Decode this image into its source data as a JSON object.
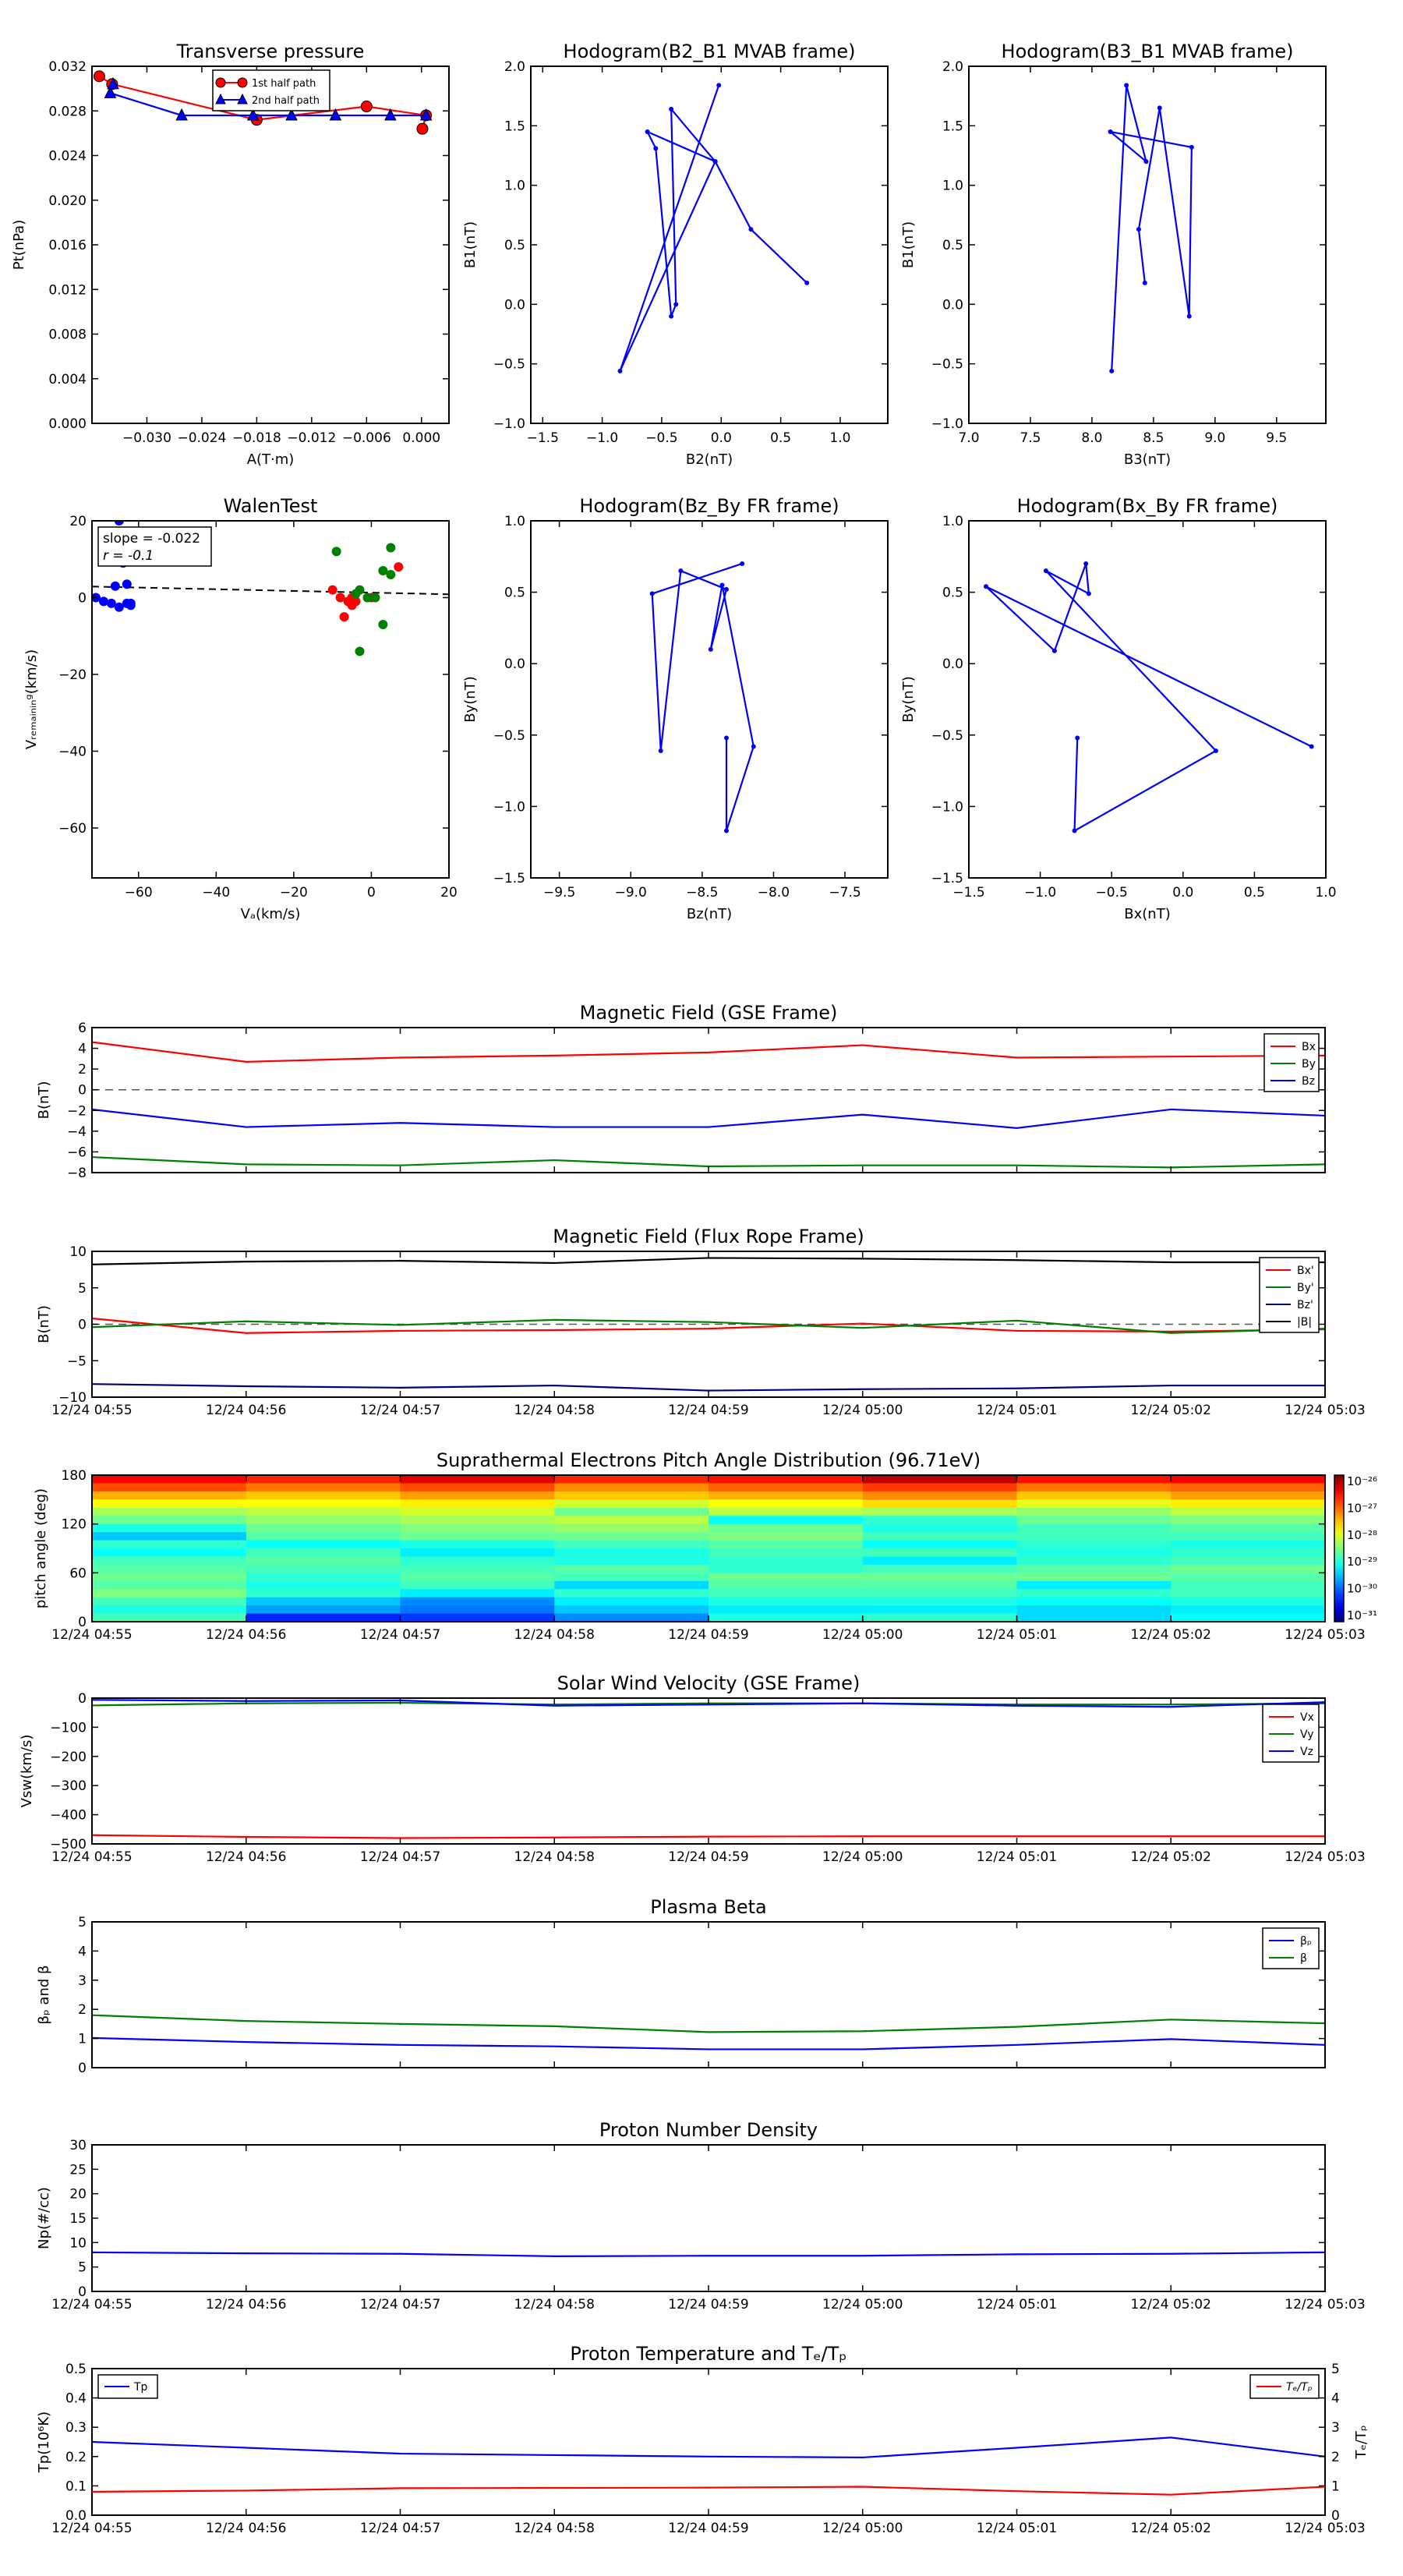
{
  "chart_data": [
    {
      "id": "tp",
      "type": "line",
      "title": "Transverse pressure",
      "xlabel": "A(T·m)",
      "ylabel": "Pt(nPa)",
      "xlim": [
        -0.036,
        0.003
      ],
      "ylim": [
        0.0,
        0.032
      ],
      "xticks": [
        -0.03,
        -0.024,
        -0.018,
        -0.012,
        -0.006,
        0.0
      ],
      "xtick_labels": [
        "−0.030",
        "−0.024",
        "−0.018",
        "−0.012",
        "−0.006",
        "0.000"
      ],
      "yticks": [
        0.0,
        0.004,
        0.008,
        0.012,
        0.016,
        0.02,
        0.024,
        0.028,
        0.032
      ],
      "ytick_labels": [
        "0.000",
        "0.004",
        "0.008",
        "0.012",
        "0.016",
        "0.020",
        "0.024",
        "0.028",
        "0.032"
      ],
      "legend": [
        "1st half path",
        "2nd half path"
      ],
      "series": [
        {
          "name": "1st half path",
          "color": "#ff0000",
          "marker": "circle",
          "fill": "#ff0000",
          "x": [
            -0.0352,
            -0.0338,
            -0.018,
            -0.006,
            0.0005,
            0.0001
          ],
          "y": [
            0.0311,
            0.0304,
            0.0272,
            0.0284,
            0.0276,
            0.0264
          ]
        },
        {
          "name": "2nd half path",
          "color": "#0000ff",
          "marker": "triangle",
          "fill": "#0000ff",
          "x": [
            0.0005,
            -0.0034,
            -0.0094,
            -0.0142,
            -0.0184,
            -0.0262,
            -0.034,
            -0.0337
          ],
          "y": [
            0.0276,
            0.0276,
            0.0276,
            0.0276,
            0.0276,
            0.0276,
            0.0296,
            0.0304
          ]
        }
      ]
    },
    {
      "id": "h1",
      "type": "line",
      "title": "Hodogram(B2_B1 MVAB frame)",
      "xlabel": "B2(nT)",
      "ylabel": "B1(nT)",
      "xlim": [
        -1.6,
        1.4
      ],
      "ylim": [
        -1.0,
        2.0
      ],
      "xticks": [
        -1.5,
        -1.0,
        -0.5,
        0.0,
        0.5,
        1.0
      ],
      "xtick_labels": [
        "−1.5",
        "−1.0",
        "−0.5",
        "0.0",
        "0.5",
        "1.0"
      ],
      "yticks": [
        -1.0,
        -0.5,
        0.0,
        0.5,
        1.0,
        1.5,
        2.0
      ],
      "ytick_labels": [
        "−1.0",
        "−0.5",
        "0.0",
        "0.5",
        "1.0",
        "1.5",
        "2.0"
      ],
      "series": [
        {
          "name": "hodogram",
          "color": "#0000ff",
          "marker": "dot",
          "x": [
            0.72,
            0.25,
            -0.05,
            -0.62,
            -0.55,
            -0.42,
            -0.38,
            -0.42,
            -0.05,
            -0.85,
            -0.02
          ],
          "y": [
            0.18,
            0.63,
            1.2,
            1.45,
            1.31,
            -0.1,
            0.0,
            1.64,
            1.2,
            -0.56,
            1.84
          ]
        }
      ]
    },
    {
      "id": "h2",
      "type": "line",
      "title": "Hodogram(B3_B1 MVAB frame)",
      "xlabel": "B3(nT)",
      "ylabel": "B1(nT)",
      "xlim": [
        7.0,
        9.9
      ],
      "ylim": [
        -1.0,
        2.0
      ],
      "xticks": [
        7.0,
        7.5,
        8.0,
        8.5,
        9.0,
        9.5
      ],
      "xtick_labels": [
        "7.0",
        "7.5",
        "8.0",
        "8.5",
        "9.0",
        "9.5"
      ],
      "yticks": [
        -1.0,
        -0.5,
        0.0,
        0.5,
        1.0,
        1.5,
        2.0
      ],
      "ytick_labels": [
        "−1.0",
        "−0.5",
        "0.0",
        "0.5",
        "1.0",
        "1.5",
        "2.0"
      ],
      "series": [
        {
          "name": "hodogram",
          "color": "#0000ff",
          "marker": "dot",
          "x": [
            8.43,
            8.38,
            8.55,
            8.79,
            8.81,
            8.15,
            8.44,
            8.28,
            8.16
          ],
          "y": [
            0.18,
            0.63,
            1.65,
            -0.1,
            1.32,
            1.45,
            1.2,
            1.84,
            -0.56
          ]
        }
      ]
    },
    {
      "id": "walen",
      "type": "scatter",
      "title": "WalenTest",
      "xlabel": "Vₐ(km/s)",
      "ylabel": "Vᵣₑₘₐᵢₙᵢₙᵍ(km/s)",
      "xlim": [
        -72,
        20
      ],
      "ylim": [
        -73,
        20
      ],
      "xticks": [
        -60,
        -40,
        -20,
        0,
        20
      ],
      "xtick_labels": [
        "−60",
        "−40",
        "−20",
        "0",
        "20"
      ],
      "yticks": [
        20,
        0,
        -20,
        -40,
        -60
      ],
      "ytick_labels": [
        "20",
        "0",
        "−20",
        "−40",
        "−60"
      ],
      "annotation": [
        "slope = -0.022",
        "r = -0.1"
      ],
      "fit_line": {
        "slope": -0.022,
        "intercept": 1.3
      },
      "series": [
        {
          "name": "blue",
          "color": "#0000ff",
          "x": [
            -71,
            -69,
            -67,
            -66,
            -65,
            -65,
            -64,
            -63,
            -63,
            -62,
            -62
          ],
          "y": [
            0,
            -1,
            -1.5,
            3,
            20,
            -2.5,
            9,
            3.5,
            -1.5,
            -1.5,
            -2
          ]
        },
        {
          "name": "red",
          "color": "#ff0000",
          "x": [
            -10,
            -8,
            -7,
            -6,
            -5,
            -5,
            -4,
            0,
            7
          ],
          "y": [
            2,
            0,
            -5,
            -1,
            0,
            -2,
            -1,
            0,
            8
          ]
        },
        {
          "name": "green",
          "color": "#008000",
          "x": [
            -9,
            -4,
            -3,
            -3,
            -1,
            1,
            3,
            3,
            5,
            5
          ],
          "y": [
            12,
            1,
            2,
            -14,
            0,
            0,
            7,
            -7,
            13,
            6
          ]
        }
      ]
    },
    {
      "id": "h3",
      "type": "line",
      "title": "Hodogram(Bz_By FR frame)",
      "xlabel": "Bz(nT)",
      "ylabel": "By(nT)",
      "xlim": [
        -9.7,
        -7.2
      ],
      "ylim": [
        -1.5,
        1.0
      ],
      "xticks": [
        -9.5,
        -9.0,
        -8.5,
        -8.0,
        -7.5
      ],
      "xtick_labels": [
        "−9.5",
        "−9.0",
        "−8.5",
        "−8.0",
        "−7.5"
      ],
      "yticks": [
        -1.5,
        -1.0,
        -0.5,
        0.0,
        0.5,
        1.0
      ],
      "ytick_labels": [
        "−1.5",
        "−1.0",
        "−0.5",
        "0.0",
        "0.5",
        "1.0"
      ],
      "series": [
        {
          "name": "hodogram",
          "color": "#0000ff",
          "marker": "dot",
          "x": [
            -8.33,
            -8.33,
            -8.14,
            -8.36,
            -8.44,
            -8.33,
            -8.65,
            -8.79,
            -8.85,
            -8.22
          ],
          "y": [
            -0.52,
            -1.17,
            -0.58,
            0.55,
            0.1,
            0.52,
            0.65,
            -0.61,
            0.49,
            0.7
          ]
        }
      ]
    },
    {
      "id": "h4",
      "type": "line",
      "title": "Hodogram(Bx_By FR frame)",
      "xlabel": "Bx(nT)",
      "ylabel": "By(nT)",
      "xlim": [
        -1.5,
        1.0
      ],
      "ylim": [
        -1.5,
        1.0
      ],
      "xticks": [
        -1.5,
        -1.0,
        -0.5,
        0.0,
        0.5,
        1.0
      ],
      "xtick_labels": [
        "−1.5",
        "−1.0",
        "−0.5",
        "0.0",
        "0.5",
        "1.0"
      ],
      "yticks": [
        -1.5,
        -1.0,
        -0.5,
        0.0,
        0.5,
        1.0
      ],
      "ytick_labels": [
        "−1.5",
        "−1.0",
        "−0.5",
        "0.0",
        "0.5",
        "1.0"
      ],
      "series": [
        {
          "name": "hodogram",
          "color": "#0000ff",
          "marker": "dot",
          "x": [
            -0.74,
            -0.76,
            0.23,
            -0.96,
            -0.66,
            -0.68,
            -0.9,
            -1.38,
            0.9
          ],
          "y": [
            -0.52,
            -1.17,
            -0.61,
            0.65,
            0.49,
            0.7,
            0.09,
            0.54,
            -0.58
          ]
        }
      ]
    },
    {
      "id": "mf_gse",
      "type": "line",
      "title": "Magnetic Field (GSE Frame)",
      "ylabel": "B(nT)",
      "ylim": [
        -8,
        6
      ],
      "dashed_zero": true,
      "yticks": [
        6,
        4,
        2,
        0,
        -2,
        -4,
        -6,
        -8
      ],
      "ytick_labels": [
        "6",
        "4",
        "2",
        "0",
        "−2",
        "−4",
        "−6",
        "−8"
      ],
      "legend_position": "top-right",
      "series": [
        {
          "name": "Bx",
          "color": "#ff0000",
          "values": [
            4.6,
            2.7,
            3.1,
            3.3,
            3.6,
            4.3,
            3.1,
            3.2,
            3.3
          ]
        },
        {
          "name": "By",
          "color": "#008000",
          "values": [
            -6.5,
            -7.2,
            -7.3,
            -6.8,
            -7.4,
            -7.3,
            -7.3,
            -7.5,
            -7.2
          ]
        },
        {
          "name": "Bz",
          "color": "#0000ff",
          "values": [
            -1.9,
            -3.6,
            -3.2,
            -3.6,
            -3.6,
            -2.4,
            -3.7,
            -1.9,
            -2.5
          ]
        }
      ]
    },
    {
      "id": "mf_fr",
      "type": "line",
      "title": "Magnetic Field (Flux Rope Frame)",
      "ylabel": "B(nT)",
      "ylim": [
        -10,
        10
      ],
      "dashed_zero": true,
      "yticks": [
        10,
        5,
        0,
        -5,
        -10
      ],
      "ytick_labels": [
        "10",
        "5",
        "0",
        "−5",
        "−10"
      ],
      "legend_position": "top-right",
      "series": [
        {
          "name": "Bx'",
          "color": "#ff0000",
          "values": [
            0.8,
            -1.2,
            -0.9,
            -0.8,
            -0.6,
            0.1,
            -0.9,
            -1.0,
            -0.7
          ]
        },
        {
          "name": "By'",
          "color": "#008000",
          "values": [
            -0.4,
            0.4,
            -0.1,
            0.6,
            0.3,
            -0.5,
            0.5,
            -1.2,
            -0.6
          ]
        },
        {
          "name": "Bz'",
          "color": "#000080",
          "values": [
            -8.2,
            -8.5,
            -8.7,
            -8.4,
            -9.1,
            -8.9,
            -8.8,
            -8.4,
            -8.4
          ]
        },
        {
          "name": "|B|",
          "color": "#000000",
          "values": [
            8.2,
            8.6,
            8.7,
            8.4,
            9.1,
            9.0,
            8.8,
            8.5,
            8.5
          ]
        }
      ]
    },
    {
      "id": "pad",
      "type": "heatmap",
      "title": "Suprathermal Electrons Pitch Angle Distribution (96.71eV)",
      "ylabel": "pitch angle (deg)",
      "ylim": [
        0,
        180
      ],
      "yticks": [
        180,
        120,
        60,
        0
      ],
      "ytick_labels": [
        "180",
        "120",
        "60",
        "0"
      ],
      "colorbar_labels": [
        "10⁻²⁶",
        "10⁻²⁷",
        "10⁻²⁸",
        "10⁻²⁹",
        "10⁻³⁰",
        "10⁻³¹"
      ],
      "colorbar_range": [
        -31,
        -26
      ],
      "rows": [
        [
          -26.6,
          -26.8,
          -26.5,
          -26.8,
          -26.7,
          -26.3,
          -26.7,
          -26.6
        ],
        [
          -27.0,
          -27.2,
          -27.0,
          -27.3,
          -27.1,
          -26.9,
          -27.2,
          -27.1
        ],
        [
          -27.5,
          -27.6,
          -27.4,
          -27.6,
          -27.5,
          -27.3,
          -27.6,
          -27.4
        ],
        [
          -27.9,
          -27.9,
          -27.8,
          -28.1,
          -27.9,
          -27.7,
          -28.0,
          -27.8
        ],
        [
          -28.3,
          -28.2,
          -28.1,
          -28.6,
          -28.2,
          -28.3,
          -28.4,
          -28.2
        ],
        [
          -28.6,
          -28.4,
          -28.3,
          -28.2,
          -29.1,
          -28.9,
          -28.6,
          -28.5
        ],
        [
          -29.0,
          -28.6,
          -28.5,
          -28.4,
          -28.6,
          -29.0,
          -28.8,
          -28.7
        ],
        [
          -29.4,
          -28.7,
          -28.6,
          -28.6,
          -28.5,
          -28.8,
          -28.8,
          -28.8
        ],
        [
          -28.9,
          -29.1,
          -29.0,
          -28.8,
          -28.7,
          -29.1,
          -28.9,
          -29.0
        ],
        [
          -29.1,
          -28.8,
          -29.2,
          -29.0,
          -28.8,
          -28.8,
          -29.0,
          -28.9
        ],
        [
          -28.8,
          -28.7,
          -28.9,
          -29.0,
          -28.9,
          -29.2,
          -28.9,
          -28.8
        ],
        [
          -28.7,
          -28.8,
          -28.8,
          -28.7,
          -28.9,
          -28.8,
          -28.7,
          -28.6
        ],
        [
          -28.6,
          -28.9,
          -28.7,
          -28.8,
          -28.6,
          -28.6,
          -28.6,
          -28.7
        ],
        [
          -28.7,
          -29.0,
          -28.8,
          -29.3,
          -28.7,
          -28.7,
          -29.2,
          -28.8
        ],
        [
          -28.5,
          -28.9,
          -29.2,
          -28.9,
          -28.8,
          -28.8,
          -28.9,
          -28.8
        ],
        [
          -28.8,
          -29.4,
          -29.7,
          -29.2,
          -29.0,
          -29.0,
          -29.1,
          -29.0
        ],
        [
          -29.0,
          -29.6,
          -29.8,
          -29.4,
          -29.2,
          -29.2,
          -29.3,
          -29.2
        ],
        [
          -28.8,
          -30.2,
          -30.1,
          -29.7,
          -29.0,
          -28.9,
          -29.3,
          -29.1
        ]
      ]
    },
    {
      "id": "vsw",
      "type": "line",
      "title": "Solar Wind Velocity (GSE Frame)",
      "ylabel": "Vsw(km/s)",
      "ylim": [
        -500,
        0
      ],
      "yticks": [
        0,
        -100,
        -200,
        -300,
        -400,
        -500
      ],
      "ytick_labels": [
        "0",
        "−100",
        "−200",
        "−300",
        "−400",
        "−500"
      ],
      "legend_position": "top-right",
      "series": [
        {
          "name": "Vx",
          "color": "#ff0000",
          "values": [
            -470,
            -476,
            -480,
            -478,
            -475,
            -474,
            -474,
            -474,
            -474
          ]
        },
        {
          "name": "Vy",
          "color": "#008000",
          "values": [
            -25,
            -18,
            -16,
            -22,
            -18,
            -18,
            -22,
            -22,
            -18
          ]
        },
        {
          "name": "Vz",
          "color": "#0000ff",
          "values": [
            -6,
            -10,
            -8,
            -26,
            -22,
            -18,
            -26,
            -30,
            -14
          ]
        }
      ]
    },
    {
      "id": "beta",
      "type": "line",
      "title": "Plasma Beta",
      "ylabel": "βₚ and β",
      "ylim": [
        0,
        5
      ],
      "yticks": [
        5,
        4,
        3,
        2,
        1,
        0
      ],
      "ytick_labels": [
        "5",
        "4",
        "3",
        "2",
        "1",
        "0"
      ],
      "legend_position": "top-right",
      "series": [
        {
          "name": "βₚ",
          "color": "#0000ff",
          "values": [
            1.02,
            0.88,
            0.78,
            0.73,
            0.63,
            0.63,
            0.78,
            0.98,
            0.78
          ]
        },
        {
          "name": "β",
          "color": "#008000",
          "values": [
            1.8,
            1.6,
            1.5,
            1.42,
            1.22,
            1.25,
            1.4,
            1.65,
            1.52
          ]
        }
      ]
    },
    {
      "id": "np",
      "type": "line",
      "title": "Proton Number Density",
      "ylabel": "Np(#/cc)",
      "ylim": [
        0,
        30
      ],
      "yticks": [
        30,
        25,
        20,
        15,
        10,
        5,
        0
      ],
      "ytick_labels": [
        "30",
        "25",
        "20",
        "15",
        "10",
        "5",
        "0"
      ],
      "series": [
        {
          "name": "Np",
          "color": "#0000ff",
          "values": [
            8.0,
            7.8,
            7.7,
            7.2,
            7.3,
            7.3,
            7.6,
            7.7,
            8.0
          ]
        }
      ]
    },
    {
      "id": "temp",
      "type": "line",
      "title": "Proton Temperature and Tₑ/Tₚ",
      "ylabel": "Tp(10⁶K)",
      "y2label": "Tₑ/Tₚ",
      "ylim": [
        0,
        0.5
      ],
      "y2lim": [
        0,
        5
      ],
      "yticks": [
        0.5,
        0.4,
        0.3,
        0.2,
        0.1,
        0.0
      ],
      "ytick_labels": [
        "0.5",
        "0.4",
        "0.3",
        "0.2",
        "0.1",
        "0.0"
      ],
      "y2ticks": [
        5,
        4,
        3,
        2,
        1,
        0
      ],
      "y2tick_labels": [
        "5",
        "4",
        "3",
        "2",
        "1",
        "0"
      ],
      "series": [
        {
          "name": "Tp",
          "color": "#0000ff",
          "axis": "left",
          "values": [
            0.25,
            0.23,
            0.21,
            0.205,
            0.2,
            0.197,
            0.23,
            0.265,
            0.2
          ]
        },
        {
          "name": "Tₑ/Tₚ",
          "color": "#ff0000",
          "axis": "right",
          "values": [
            0.8,
            0.84,
            0.92,
            0.93,
            0.94,
            0.97,
            0.82,
            0.7,
            0.97
          ]
        }
      ]
    }
  ],
  "time_axis": [
    "12/24 04:55",
    "12/24 04:56",
    "12/24 04:57",
    "12/24 04:58",
    "12/24 04:59",
    "12/24 05:00",
    "12/24 05:01",
    "12/24 05:02",
    "12/24 05:03"
  ]
}
